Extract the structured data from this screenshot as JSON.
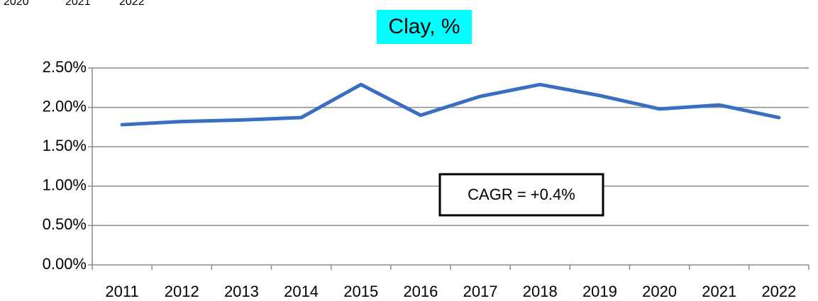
{
  "cropped_labels": [
    "2020",
    "2021",
    "2022"
  ],
  "chart_data": {
    "type": "line",
    "title": "Clay, %",
    "categories": [
      "2011",
      "2012",
      "2013",
      "2014",
      "2015",
      "2016",
      "2017",
      "2018",
      "2019",
      "2020",
      "2021",
      "2022"
    ],
    "series": [
      {
        "name": "Clay",
        "color": "#3a6ec0",
        "values": [
          1.78,
          1.82,
          1.84,
          1.87,
          2.29,
          1.9,
          2.14,
          2.29,
          2.15,
          1.98,
          2.03,
          1.87
        ]
      }
    ],
    "ylim": [
      0,
      2.5
    ],
    "yticks": [
      {
        "value": 0,
        "label": "0.00%"
      },
      {
        "value": 0.5,
        "label": "0.50%"
      },
      {
        "value": 1,
        "label": "1.00%"
      },
      {
        "value": 1.5,
        "label": "1.50%"
      },
      {
        "value": 2,
        "label": "2.00%"
      },
      {
        "value": 2.5,
        "label": "2.50%"
      }
    ],
    "grid": true,
    "annotations": [
      "CAGR = +0.4%"
    ]
  }
}
